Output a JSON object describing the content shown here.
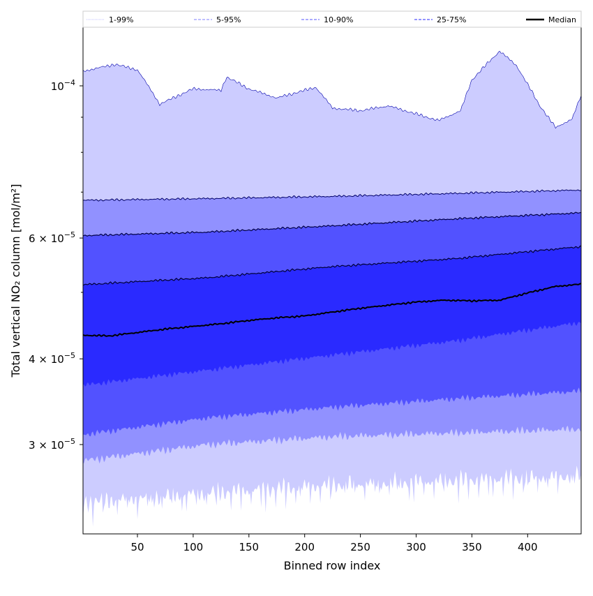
{
  "chart_data": {
    "type": "area",
    "title": "",
    "xlabel": "Binned row index",
    "ylabel": "Total vertical NO₂ column [mol/m²]",
    "yscale": "log",
    "xlim": [
      1,
      448
    ],
    "ylim": [
      2.22e-05,
      0.0001217
    ],
    "grid": false,
    "legend_placement": "top, above plot, horizontal",
    "x_ticks": [
      50,
      100,
      150,
      200,
      250,
      300,
      350,
      400
    ],
    "x_tick_labels": [
      "50",
      "100",
      "150",
      "200",
      "250",
      "300",
      "350",
      "400"
    ],
    "y_ticks": [
      {
        "value": 0.0001,
        "mantissa": "",
        "base": "10",
        "exponent": "−4"
      },
      {
        "value": 6e-05,
        "mantissa": "6 × ",
        "base": "10",
        "exponent": "−5"
      },
      {
        "value": 4e-05,
        "mantissa": "4 × ",
        "base": "10",
        "exponent": "−5"
      },
      {
        "value": 3e-05,
        "mantissa": "3 × ",
        "base": "10",
        "exponent": "−5"
      }
    ],
    "y_minor_ticks": [
      5e-05,
      7e-05,
      8e-05,
      9e-05
    ],
    "legend": [
      {
        "label": "1-99%",
        "color": "#ccccff",
        "style": "dotted"
      },
      {
        "label": "5-95%",
        "color": "#9999ff",
        "style": "dashed"
      },
      {
        "label": "10-90%",
        "color": "#7777ff",
        "style": "dashed"
      },
      {
        "label": "25-75%",
        "color": "#5555ff",
        "style": "dashed"
      },
      {
        "label": "Median",
        "color": "#000000",
        "style": "solid"
      }
    ],
    "bands": [
      {
        "name": "1-99%",
        "color": "#ccccff",
        "lower": "p01",
        "upper": "p99"
      },
      {
        "name": "5-95%",
        "color": "#9191ff",
        "lower": "p05",
        "upper": "p95"
      },
      {
        "name": "10-90%",
        "color": "#5252ff",
        "lower": "p10",
        "upper": "p90"
      },
      {
        "name": "25-75%",
        "color": "#2a2aff",
        "lower": "p25",
        "upper": "p75"
      }
    ],
    "series": {
      "p01": {
        "x": [
          1,
          112,
          224,
          336,
          448
        ],
        "values": [
          2.47e-05,
          2.55e-05,
          2.62e-05,
          2.66e-05,
          2.7e-05
        ],
        "noise": 0.035
      },
      "p05": {
        "x": [
          1,
          112,
          224,
          336,
          448
        ],
        "values": [
          2.84e-05,
          3e-05,
          3.08e-05,
          3.12e-05,
          3.16e-05
        ],
        "noise": 0.015
      },
      "p10": {
        "x": [
          1,
          112,
          224,
          336,
          448
        ],
        "values": [
          3.1e-05,
          3.28e-05,
          3.4e-05,
          3.5e-05,
          3.59e-05
        ],
        "noise": 0.012
      },
      "p25": {
        "x": [
          1,
          112,
          224,
          336,
          448
        ],
        "values": [
          3.66e-05,
          3.85e-05,
          4.05e-05,
          4.25e-05,
          4.52e-05
        ],
        "noise": 0.01
      },
      "median": {
        "x": [
          1,
          25,
          50,
          75,
          100,
          125,
          150,
          175,
          200,
          225,
          250,
          275,
          300,
          325,
          350,
          375,
          400,
          425,
          448
        ],
        "values": [
          4.33e-05,
          4.32e-05,
          4.37e-05,
          4.42e-05,
          4.46e-05,
          4.5e-05,
          4.55e-05,
          4.59e-05,
          4.62e-05,
          4.68e-05,
          4.74e-05,
          4.79e-05,
          4.84e-05,
          4.87e-05,
          4.86e-05,
          4.87e-05,
          4.99e-05,
          5.1e-05,
          5.14e-05
        ],
        "noise": 0.003
      },
      "p75": {
        "x": [
          1,
          112,
          224,
          336,
          448
        ],
        "values": [
          5.13e-05,
          5.25e-05,
          5.45e-05,
          5.6e-05,
          5.83e-05
        ],
        "noise": 0.004
      },
      "p90": {
        "x": [
          1,
          112,
          224,
          336,
          448
        ],
        "values": [
          6.05e-05,
          6.12e-05,
          6.25e-05,
          6.4e-05,
          6.53e-05
        ],
        "noise": 0.004
      },
      "p95": {
        "x": [
          1,
          112,
          224,
          336,
          448
        ],
        "values": [
          6.81e-05,
          6.85e-05,
          6.9e-05,
          6.97e-05,
          7.05e-05
        ],
        "noise": 0.004
      },
      "p99": {
        "x": [
          1,
          30,
          50,
          70,
          100,
          125,
          130,
          150,
          175,
          200,
          210,
          225,
          250,
          275,
          300,
          320,
          340,
          350,
          375,
          390,
          410,
          425,
          440,
          448
        ],
        "values": [
          0.000105,
          0.0001075,
          0.0001055,
          9.4e-05,
          9.9e-05,
          9.85e-05,
          0.000103,
          9.9e-05,
          9.6e-05,
          9.85e-05,
          9.95e-05,
          9.28e-05,
          9.2e-05,
          9.35e-05,
          9.1e-05,
          8.9e-05,
          9.2e-05,
          0.000102,
          0.0001124,
          0.000107,
          9.4e-05,
          8.69e-05,
          8.95e-05,
          9.68e-05
        ],
        "noise": 0.006
      }
    }
  }
}
